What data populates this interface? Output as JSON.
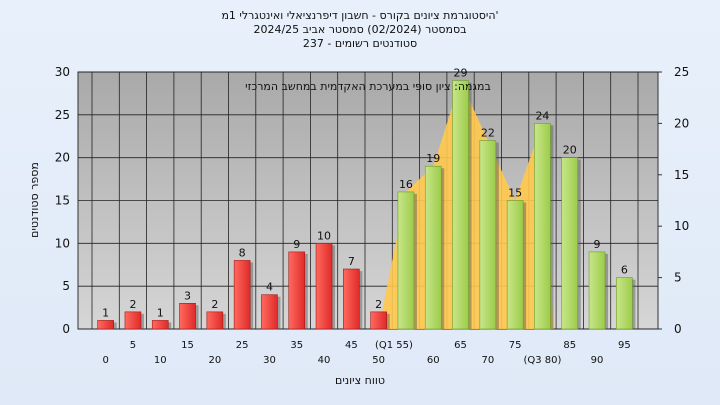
{
  "header": {
    "title_line1": "היסטוגרמת ציונים בקורס - חשבון דיפרנציאלי ואינטגרלי 1מ'",
    "title_line2": "בסמסטר  (02/2024)  סמסטר אביב 2024/25",
    "title_line3": "סטודנטים רשומים - 237"
  },
  "chart_data": {
    "type": "bar",
    "subtitle": "במגמה: ציון סופי במערכת האקדמית במחשב המרכזי",
    "xlabel": "טווח ציונים",
    "ylabel": "מספר סטודנטים",
    "ylim": [
      0,
      30
    ],
    "y2lim": [
      0,
      25
    ],
    "yticks": [
      0,
      5,
      10,
      15,
      20,
      25,
      30
    ],
    "y2ticks": [
      0,
      5,
      10,
      15,
      20,
      25
    ],
    "grid": true,
    "categories": [
      "0",
      "5",
      "10",
      "15",
      "20",
      "25",
      "30",
      "35",
      "40",
      "45",
      "50",
      "55",
      "60",
      "65",
      "70",
      "75",
      "80",
      "85",
      "90",
      "95"
    ],
    "tick_labels": [
      "0",
      "5",
      "10",
      "15",
      "20",
      "25",
      "30",
      "35",
      "40",
      "45",
      "50",
      "(Q1 55)",
      "60",
      "65",
      "70",
      "75",
      "(Q3 80)",
      "85",
      "90",
      "95"
    ],
    "values": [
      1,
      2,
      1,
      3,
      2,
      8,
      4,
      9,
      10,
      7,
      2,
      16,
      19,
      29,
      22,
      15,
      24,
      20,
      9,
      6
    ],
    "value_labels": [
      "1",
      "2",
      "1",
      "3",
      "2",
      "8",
      "4",
      "9",
      "10",
      "7",
      "2",
      "16",
      "19",
      "29",
      "22",
      "15",
      "24",
      "20",
      "9",
      "6"
    ],
    "fail_color": "#e02a2a",
    "pass_color": "#9ccc4a",
    "distribution_area": {
      "color": "#ffc94d",
      "x": [
        50,
        55,
        60,
        65,
        70,
        75,
        80,
        82
      ],
      "y": [
        0,
        16,
        19,
        29,
        22,
        15,
        24,
        0
      ]
    }
  }
}
